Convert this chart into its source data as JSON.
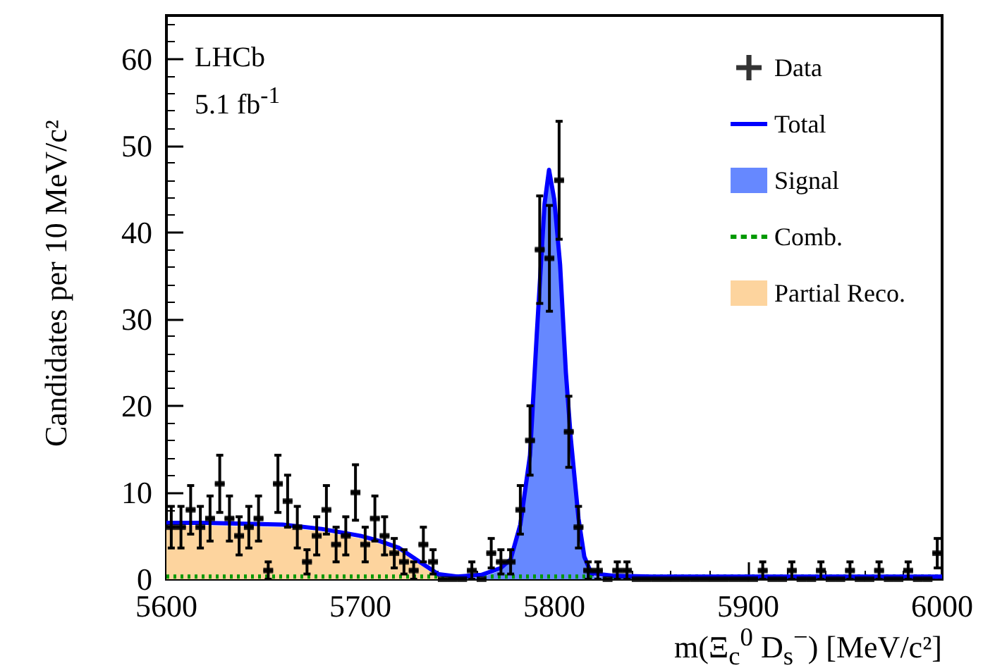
{
  "chart_data": {
    "type": "scatter",
    "xlabel": "m(Ξ$_{c}$$^{0}$ D$_{s}$$^{−}$) [MeV/c²]",
    "ylabel": "Candidates per 10 MeV/c²",
    "annotations": [
      "LHCb",
      "5.1 fb$^{-1}$"
    ],
    "xlim": [
      5600,
      6000
    ],
    "xticks": [
      5600,
      5700,
      5800,
      5900,
      6000
    ],
    "ylim": [
      0,
      65
    ],
    "yticks": [
      0,
      10,
      20,
      30,
      40,
      50,
      60
    ],
    "legend": "top right",
    "x": [
      5602.5,
      5607.5,
      5612.5,
      5617.5,
      5622.5,
      5627.5,
      5632.5,
      5637.5,
      5642.5,
      5647.5,
      5652.5,
      5657.5,
      5662.5,
      5667.5,
      5672.5,
      5677.5,
      5682.5,
      5687.5,
      5692.5,
      5697.5,
      5702.5,
      5707.5,
      5712.5,
      5717.5,
      5722.5,
      5727.5,
      5732.5,
      5737.5,
      5742.5,
      5747.5,
      5752.5,
      5757.5,
      5762.5,
      5767.5,
      5772.5,
      5777.5,
      5782.5,
      5787.5,
      5792.5,
      5797.5,
      5802.5,
      5807.5,
      5812.5,
      5817.5,
      5822.5,
      5827.5,
      5832.5,
      5837.5,
      5842.5,
      5847.5,
      5852.5,
      5857.5,
      5862.5,
      5867.5,
      5872.5,
      5877.5,
      5882.5,
      5887.5,
      5892.5,
      5897.5,
      5902.5,
      5907.5,
      5912.5,
      5917.5,
      5922.5,
      5927.5,
      5932.5,
      5937.5,
      5942.5,
      5947.5,
      5952.5,
      5957.5,
      5962.5,
      5967.5,
      5972.5,
      5977.5,
      5982.5,
      5987.5,
      5992.5,
      5997.5
    ],
    "series": [
      {
        "name": "Data",
        "color": "#000000",
        "values": [
          6,
          6,
          8,
          6,
          7,
          11,
          7,
          5,
          6,
          7,
          1,
          11,
          9,
          6,
          2,
          5,
          8,
          4,
          5,
          10,
          4,
          7,
          5,
          3,
          2,
          1,
          4,
          2,
          0,
          0,
          0,
          1,
          0,
          3,
          2,
          2,
          8,
          16,
          38,
          37,
          46,
          17,
          6,
          1,
          1,
          0,
          1,
          1,
          0,
          0,
          0,
          0,
          0,
          0,
          0,
          0,
          0,
          0,
          0,
          0,
          0,
          1,
          0,
          0,
          1,
          0,
          0,
          1,
          0,
          0,
          1,
          0,
          0,
          1,
          0,
          0,
          1,
          0,
          0,
          3
        ],
        "errors": [
          2.4,
          2.4,
          2.8,
          2.4,
          2.6,
          3.3,
          2.6,
          2.2,
          2.4,
          2.6,
          1,
          3.3,
          3,
          2.4,
          1.4,
          2.2,
          2.8,
          2,
          2.2,
          3.2,
          2,
          2.6,
          2.2,
          1.7,
          1.4,
          1,
          2,
          1.4,
          null,
          null,
          null,
          1,
          null,
          1.7,
          1.4,
          1.4,
          2.8,
          4,
          6.2,
          6.1,
          6.8,
          4.1,
          2.4,
          1,
          1,
          null,
          1,
          1,
          null,
          null,
          null,
          null,
          null,
          null,
          null,
          null,
          null,
          null,
          null,
          null,
          null,
          1,
          null,
          null,
          1,
          null,
          null,
          1,
          null,
          null,
          1,
          null,
          null,
          1,
          null,
          null,
          1,
          null,
          null,
          1.7
        ],
        "xerrors": [
          2.5,
          2.5,
          2.5,
          2.5,
          2.5,
          2.5,
          2.5,
          2.5,
          2.5,
          2.5,
          2.5,
          2.5,
          2.5,
          2.5,
          2.5,
          2.5,
          2.5,
          2.5,
          2.5,
          2.5,
          2.5,
          2.5,
          2.5,
          2.5,
          2.5,
          2.5,
          2.5,
          2.5,
          2.5,
          2.5,
          2.5,
          2.5,
          2.5,
          2.5,
          2.5,
          2.5,
          2.5,
          2.5,
          2.5,
          2.5,
          2.5,
          2.5,
          2.5,
          2.5,
          2.5,
          2.5,
          2.5,
          2.5,
          2.5,
          2.5,
          2.5,
          2.5,
          2.5,
          2.5,
          2.5,
          2.5,
          2.5,
          2.5,
          2.5,
          2.5,
          2.5,
          2.5,
          2.5,
          2.5,
          2.5,
          2.5,
          2.5,
          2.5,
          2.5,
          2.5,
          2.5,
          2.5,
          2.5,
          2.5,
          2.5,
          2.5,
          2.5,
          2.5,
          2.5,
          2.5
        ]
      },
      {
        "name": "Total",
        "type": "line",
        "color": "#0000ff",
        "x": [
          5600,
          5620,
          5640,
          5660,
          5680,
          5700,
          5710,
          5720,
          5730,
          5740,
          5750,
          5762.5,
          5772.5,
          5777.5,
          5782.5,
          5787.5,
          5791,
          5795,
          5797.3,
          5800,
          5803,
          5806,
          5808.5,
          5812.5,
          5815.5,
          5819,
          5830,
          5850,
          6000
        ],
        "values": [
          6.5,
          6.5,
          6.4,
          6.3,
          5.8,
          5.0,
          4.4,
          3.6,
          2.1,
          0.6,
          0.3,
          0.5,
          1.3,
          2.3,
          6.3,
          14.3,
          28.3,
          43.3,
          47.2,
          43.8,
          36.3,
          23.8,
          16.3,
          7,
          2.6,
          0.7,
          0.4,
          0.3,
          0.3
        ]
      },
      {
        "name": "Signal",
        "type": "area",
        "color": "#6688ff",
        "x": [
          5750,
          5762.5,
          5772.5,
          5777.5,
          5782.5,
          5787.5,
          5791,
          5795,
          5797.3,
          5800,
          5803,
          5806,
          5808.5,
          5812.5,
          5815.5,
          5819,
          5830,
          5850
        ],
        "values": [
          0,
          0.2,
          1,
          2,
          6,
          14,
          28,
          43,
          46.9,
          43.5,
          36,
          23.5,
          16,
          6.7,
          2.3,
          0.4,
          0.1,
          0
        ]
      },
      {
        "name": "Comb.",
        "type": "line",
        "color": "#009900",
        "line_style": "dotted",
        "x": [
          5600,
          6000
        ],
        "values": [
          0.3,
          0.3
        ]
      },
      {
        "name": "Partial Reco.",
        "type": "area",
        "color": "#fdd49e",
        "x": [
          5600,
          5620,
          5640,
          5660,
          5680,
          5700,
          5710,
          5720,
          5730,
          5740,
          5750
        ],
        "values": [
          6.2,
          6.2,
          6.1,
          6.0,
          5.5,
          4.7,
          4.1,
          3.3,
          1.8,
          0.3,
          0
        ]
      }
    ]
  }
}
